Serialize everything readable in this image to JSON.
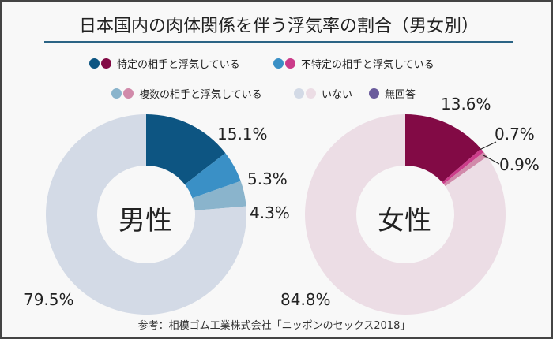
{
  "title": "日本国内の肉体関係を伴う浮気率の割合（男女別）",
  "legend": [
    {
      "label": "特定の相手と浮気している",
      "colors": [
        "#0d5582",
        "#820a45"
      ]
    },
    {
      "label": "不特定の相手と浮気している",
      "colors": [
        "#3a90c6",
        "#cb3c8a"
      ]
    },
    {
      "label": "複数の相手と浮気している",
      "colors": [
        "#8ab4cc",
        "#d18aaa"
      ]
    },
    {
      "label": "いない",
      "colors": [
        "#d3dae6",
        "#ecdde5"
      ]
    },
    {
      "label": "無回答",
      "colors": [
        "#6a5b9c"
      ]
    }
  ],
  "chart_data": [
    {
      "type": "pie",
      "donut": true,
      "center_label": "男性",
      "categories": [
        "特定の相手と浮気している",
        "不特定の相手と浮気している",
        "複数の相手と浮気している",
        "いない"
      ],
      "values": [
        15.1,
        5.3,
        4.3,
        79.5
      ],
      "data_labels": [
        "15.1%",
        "5.3%",
        "4.3%",
        "79.5%"
      ],
      "colors": [
        "#0d5582",
        "#3a90c6",
        "#8ab4cc",
        "#d3dae6"
      ]
    },
    {
      "type": "pie",
      "donut": true,
      "center_label": "女性",
      "categories": [
        "特定の相手と浮気している",
        "不特定の相手と浮気している",
        "複数の相手と浮気している",
        "いない"
      ],
      "values": [
        13.6,
        0.7,
        0.9,
        84.8
      ],
      "data_labels": [
        "13.6%",
        "0.7%",
        "0.9%",
        "84.8%"
      ],
      "colors": [
        "#820a45",
        "#cb3c8a",
        "#d18aaa",
        "#ecdde5"
      ]
    }
  ],
  "source": "参考：相模ゴム工業株式会社「ニッポンのセックス2018」"
}
